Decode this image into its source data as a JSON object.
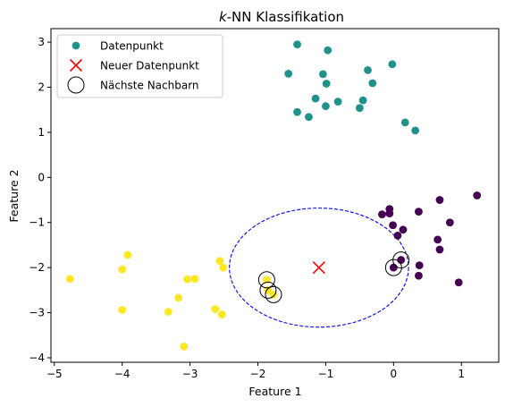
{
  "chart_data": {
    "type": "scatter",
    "title": "k-NN Klassifikation",
    "title_italic_part": "k",
    "title_rest": "-NN Klassifikation",
    "xlabel": "Feature 1",
    "ylabel": "Feature 2",
    "xlim": [
      -5.05,
      1.55
    ],
    "ylim": [
      -4.1,
      3.3
    ],
    "xticks": [
      -5,
      -4,
      -3,
      -2,
      -1,
      0,
      1
    ],
    "yticks": [
      -4,
      -3,
      -2,
      -1,
      0,
      1,
      2,
      3
    ],
    "grid": false,
    "legend_position": "top-left",
    "legend": [
      {
        "label": "Datenpunkt",
        "marker": "dot",
        "color": "#21918c"
      },
      {
        "label": "Neuer Datenpunkt",
        "marker": "x",
        "color": "#ff0000"
      },
      {
        "label": "Nächste Nachbarn",
        "marker": "ring",
        "color": "#000000"
      }
    ],
    "series": [
      {
        "color": "#21918c",
        "points": [
          [
            -1.42,
            2.95
          ],
          [
            -0.97,
            2.82
          ],
          [
            -1.55,
            2.3
          ],
          [
            -1.04,
            2.29
          ],
          [
            -0.38,
            2.38
          ],
          [
            -0.02,
            2.51
          ],
          [
            -0.99,
            2.08
          ],
          [
            -0.31,
            2.09
          ],
          [
            -1.15,
            1.75
          ],
          [
            -0.82,
            1.68
          ],
          [
            -0.45,
            1.71
          ],
          [
            -1.0,
            1.58
          ],
          [
            -0.5,
            1.54
          ],
          [
            -1.42,
            1.45
          ],
          [
            -1.25,
            1.34
          ],
          [
            0.17,
            1.22
          ],
          [
            0.32,
            1.04
          ]
        ]
      },
      {
        "color": "#440154",
        "points": [
          [
            1.23,
            -0.4
          ],
          [
            0.68,
            -0.5
          ],
          [
            -0.17,
            -0.82
          ],
          [
            -0.06,
            -0.8
          ],
          [
            -0.06,
            -0.7
          ],
          [
            0.37,
            -0.76
          ],
          [
            -0.01,
            -1.06
          ],
          [
            0.83,
            -1.0
          ],
          [
            0.14,
            -1.16
          ],
          [
            0.06,
            -1.29
          ],
          [
            0.65,
            -1.38
          ],
          [
            0.68,
            -1.6
          ],
          [
            0.11,
            -1.83
          ],
          [
            0.38,
            -1.95
          ],
          [
            0.0,
            -2.0
          ],
          [
            0.37,
            -2.18
          ],
          [
            0.96,
            -2.33
          ]
        ]
      },
      {
        "color": "#fde725",
        "points": [
          [
            -3.92,
            -1.72
          ],
          [
            -4.77,
            -2.25
          ],
          [
            -4.0,
            -2.04
          ],
          [
            -2.56,
            -1.85
          ],
          [
            -2.51,
            -2.0
          ],
          [
            -3.04,
            -2.26
          ],
          [
            -2.93,
            -2.25
          ],
          [
            -1.87,
            -2.27
          ],
          [
            -1.85,
            -2.5
          ],
          [
            -1.77,
            -2.6
          ],
          [
            -3.17,
            -2.67
          ],
          [
            -4.0,
            -2.94
          ],
          [
            -3.32,
            -2.98
          ],
          [
            -2.63,
            -2.92
          ],
          [
            -2.53,
            -3.04
          ],
          [
            -3.09,
            -3.75
          ]
        ]
      }
    ],
    "new_point": {
      "x": -1.1,
      "y": -2.0,
      "color": "#ff0000"
    },
    "nearest_neighbors": [
      [
        -1.87,
        -2.27
      ],
      [
        -1.85,
        -2.5
      ],
      [
        -1.77,
        -2.6
      ],
      [
        0.0,
        -2.0
      ],
      [
        0.11,
        -1.83
      ]
    ],
    "radius_circle": {
      "cx": -1.1,
      "cy": -2.0,
      "r": 1.32,
      "color": "#0000ff",
      "style": "dashed"
    }
  }
}
